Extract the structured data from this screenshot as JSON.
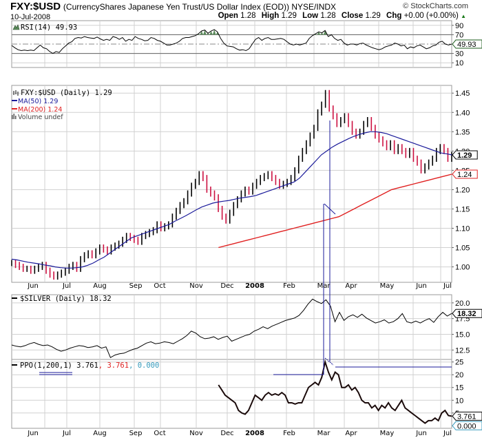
{
  "header": {
    "symbol": "FXY:$USD",
    "description": "(CurrencyShares Japanese Yen Trust/US Dollar Index (EOD)) NYSE/INDX",
    "date": "10-Jul-2008",
    "brand": "© StockCharts.com",
    "open_label": "Open",
    "open": "1.28",
    "high_label": "High",
    "high": "1.29",
    "low_label": "Low",
    "low": "1.28",
    "close_label": "Close",
    "close": "1.29",
    "chg_label": "Chg",
    "chg": "+0.00 (+0.00%)",
    "chg_arrow": "▲"
  },
  "colors": {
    "grid": "#d0d0d0",
    "ma50": "#1a1a9a",
    "ma200": "#e02020",
    "down_bar": "#cc1040",
    "up_bar": "#000000",
    "rsi_fill": "#5a8a5a",
    "ppo_signal": "#e02020",
    "ppo_hist": "#3399bb",
    "annotation": "#1a1a9a"
  },
  "chart_data": [
    {
      "type": "line",
      "panel": "rsi",
      "legend": "RSI(14) 49.93",
      "legend_icon": "rsi-icon",
      "ylim": [
        0,
        100
      ],
      "yticks": [
        10,
        30,
        70,
        90
      ],
      "reference_lines": [
        30,
        50,
        70
      ],
      "last_value_label": "49.93",
      "values": [
        47,
        42,
        38,
        36,
        37,
        36,
        37,
        36,
        42,
        48,
        42,
        40,
        34,
        30,
        34,
        32,
        40,
        46,
        52,
        55,
        62,
        64,
        63,
        66,
        64,
        63,
        62,
        65,
        61,
        58,
        60,
        58,
        66,
        64,
        60,
        64,
        56,
        60,
        58,
        66,
        62,
        60,
        57,
        58,
        64,
        62,
        58,
        56,
        52,
        48,
        48,
        50,
        52,
        56,
        62,
        64,
        64,
        66,
        68,
        72,
        78,
        80,
        73,
        78,
        81,
        76,
        62,
        52,
        46,
        45,
        44,
        40,
        37,
        38,
        36,
        40,
        50,
        60,
        64,
        58,
        62,
        64,
        60,
        60,
        61,
        62,
        60,
        55,
        50,
        48,
        50,
        48,
        50,
        52,
        62,
        68,
        72,
        76,
        74,
        79,
        66,
        70,
        62,
        58,
        60,
        52,
        48,
        50,
        50,
        48,
        51,
        52,
        48,
        45,
        42,
        40,
        38,
        40,
        44,
        46,
        48,
        52,
        50,
        46,
        48,
        40,
        44,
        42,
        46,
        48,
        44,
        40,
        42,
        46,
        48,
        54,
        56,
        50,
        48,
        50
      ]
    },
    {
      "type": "ohlc",
      "panel": "price",
      "legend": "FXY:$USD (Daily) 1.29",
      "ylim": [
        0.96,
        1.47
      ],
      "yticks": [
        1.0,
        1.05,
        1.1,
        1.15,
        1.2,
        1.25,
        1.3,
        1.35,
        1.4,
        1.45
      ],
      "last_value_label": "1.29",
      "close": [
        1.01,
        1.005,
        1.0,
        0.995,
        0.995,
        0.99,
        0.995,
        1.0,
        1.005,
        0.99,
        0.98,
        0.975,
        0.98,
        0.985,
        0.99,
        1.0,
        1.005,
        0.995,
        1.02,
        1.03,
        1.035,
        1.03,
        1.04,
        1.05,
        1.045,
        1.04,
        1.05,
        1.055,
        1.06,
        1.07,
        1.08,
        1.075,
        1.07,
        1.065,
        1.08,
        1.085,
        1.09,
        1.095,
        1.11,
        1.1,
        1.105,
        1.11,
        1.13,
        1.145,
        1.16,
        1.17,
        1.19,
        1.21,
        1.22,
        1.24,
        1.23,
        1.2,
        1.19,
        1.18,
        1.15,
        1.13,
        1.12,
        1.14,
        1.16,
        1.175,
        1.19,
        1.2,
        1.195,
        1.21,
        1.22,
        1.23,
        1.235,
        1.24,
        1.23,
        1.22,
        1.21,
        1.215,
        1.22,
        1.23,
        1.25,
        1.28,
        1.3,
        1.32,
        1.34,
        1.36,
        1.4,
        1.42,
        1.45,
        1.41,
        1.39,
        1.37,
        1.38,
        1.39,
        1.37,
        1.35,
        1.34,
        1.35,
        1.37,
        1.38,
        1.36,
        1.34,
        1.33,
        1.32,
        1.31,
        1.32,
        1.3,
        1.31,
        1.3,
        1.29,
        1.3,
        1.28,
        1.27,
        1.25,
        1.26,
        1.27,
        1.28,
        1.3,
        1.31,
        1.3,
        1.28,
        1.29
      ],
      "series": [
        {
          "name": "MA(50)",
          "legend": "MA(50) 1.29",
          "color": "#1a1a9a",
          "values": [
            1.02,
            1.018,
            1.015,
            1.012,
            1.01,
            1.008,
            1.005,
            1.003,
            1.0,
            0.998,
            0.997,
            0.997,
            0.998,
            1.0,
            1.004,
            1.01,
            1.018,
            1.025,
            1.035,
            1.045,
            1.055,
            1.065,
            1.075,
            1.08,
            1.085,
            1.09,
            1.095,
            1.1,
            1.105,
            1.11,
            1.118,
            1.125,
            1.132,
            1.14,
            1.148,
            1.155,
            1.16,
            1.165,
            1.168,
            1.17,
            1.172,
            1.175,
            1.178,
            1.18,
            1.182,
            1.185,
            1.19,
            1.195,
            1.2,
            1.205,
            1.21,
            1.215,
            1.22,
            1.23,
            1.245,
            1.26,
            1.275,
            1.29,
            1.3,
            1.31,
            1.318,
            1.325,
            1.332,
            1.338,
            1.343,
            1.347,
            1.35,
            1.35,
            1.348,
            1.345,
            1.34,
            1.335,
            1.33,
            1.325,
            1.32,
            1.315,
            1.31,
            1.305,
            1.3,
            1.295,
            1.293,
            1.29
          ]
        },
        {
          "name": "MA(200)",
          "legend": "MA(200) 1.24",
          "color": "#e02020",
          "values": [
            1.05,
            1.055,
            1.06,
            1.065,
            1.07,
            1.075,
            1.08,
            1.085,
            1.09,
            1.095,
            1.1,
            1.105,
            1.11,
            1.115,
            1.12,
            1.125,
            1.13,
            1.14,
            1.15,
            1.16,
            1.17,
            1.18,
            1.19,
            1.2,
            1.205,
            1.21,
            1.215,
            1.22,
            1.225,
            1.23,
            1.235,
            1.24
          ]
        }
      ],
      "extra_legend": "Volume undef",
      "ma50_last_label": "1.29",
      "ma200_last_label": "1.24"
    },
    {
      "type": "line",
      "panel": "silver",
      "legend": "$SILVER (Daily) 18.32",
      "ylim": [
        11.0,
        21.3
      ],
      "yticks": [
        12.5,
        15.0,
        17.5,
        20.0
      ],
      "last_value_label": "18.32",
      "values": [
        13.3,
        13.1,
        13.0,
        13.2,
        13.5,
        13.7,
        13.4,
        13.2,
        13.3,
        13.0,
        12.6,
        12.3,
        12.5,
        12.8,
        13.0,
        13.2,
        13.1,
        12.9,
        13.0,
        13.2,
        12.8,
        13.0,
        11.3,
        11.7,
        11.9,
        12.0,
        12.3,
        12.6,
        12.8,
        13.2,
        13.6,
        13.8,
        13.5,
        13.6,
        13.8,
        13.7,
        13.5,
        13.9,
        14.3,
        14.8,
        15.5,
        15.2,
        14.6,
        14.3,
        14.4,
        14.6,
        14.2,
        14.5,
        14.7,
        13.9,
        14.2,
        14.5,
        14.8,
        15.0,
        15.5,
        15.8,
        16.2,
        15.9,
        16.3,
        16.6,
        16.9,
        17.2,
        17.4,
        17.6,
        18.0,
        18.8,
        19.8,
        20.6,
        20.2,
        19.9,
        20.5,
        19.5,
        17.0,
        18.5,
        17.2,
        17.8,
        18.1,
        17.7,
        18.2,
        17.6,
        17.2,
        16.8,
        17.0,
        17.3,
        16.8,
        17.0,
        17.5,
        18.3,
        17.0,
        16.8,
        17.1,
        16.8,
        17.2,
        17.5,
        16.9,
        17.8,
        18.5,
        17.9,
        18.32
      ]
    },
    {
      "type": "line",
      "panel": "ppo",
      "legend": "PPO(1,200,1) 3.761",
      "legend_signal": ", 3.761",
      "legend_hist": ", 0.000",
      "ylim": [
        -1,
        26
      ],
      "yticks": [
        5,
        10,
        15,
        20,
        25
      ],
      "last_value_label": "3.761",
      "hist_last_label": "0.000",
      "start_fraction": 0.47,
      "values": [
        16,
        14,
        12,
        11,
        10,
        9,
        6,
        5,
        4.5,
        6,
        9,
        12,
        11,
        10,
        12,
        13,
        12,
        12.5,
        12,
        13,
        12,
        9,
        9,
        8.5,
        9,
        9,
        12,
        15,
        16,
        17,
        16,
        19,
        25,
        21,
        18,
        21,
        20,
        15,
        15,
        16,
        14,
        15,
        13,
        10,
        9,
        9,
        7,
        8,
        6,
        8,
        7,
        9,
        7,
        6,
        8,
        10,
        7,
        6,
        5,
        4,
        3,
        2,
        1,
        2,
        2,
        3,
        2,
        5,
        6,
        4,
        3.761
      ]
    }
  ],
  "x_axis": {
    "labels": [
      "Jun",
      "Jul",
      "Aug",
      "Sep",
      "Oct",
      "Nov",
      "Dec",
      "2008",
      "Feb",
      "Mar",
      "Apr",
      "May",
      "Jun",
      "Jul"
    ],
    "bold_label": "2008"
  }
}
